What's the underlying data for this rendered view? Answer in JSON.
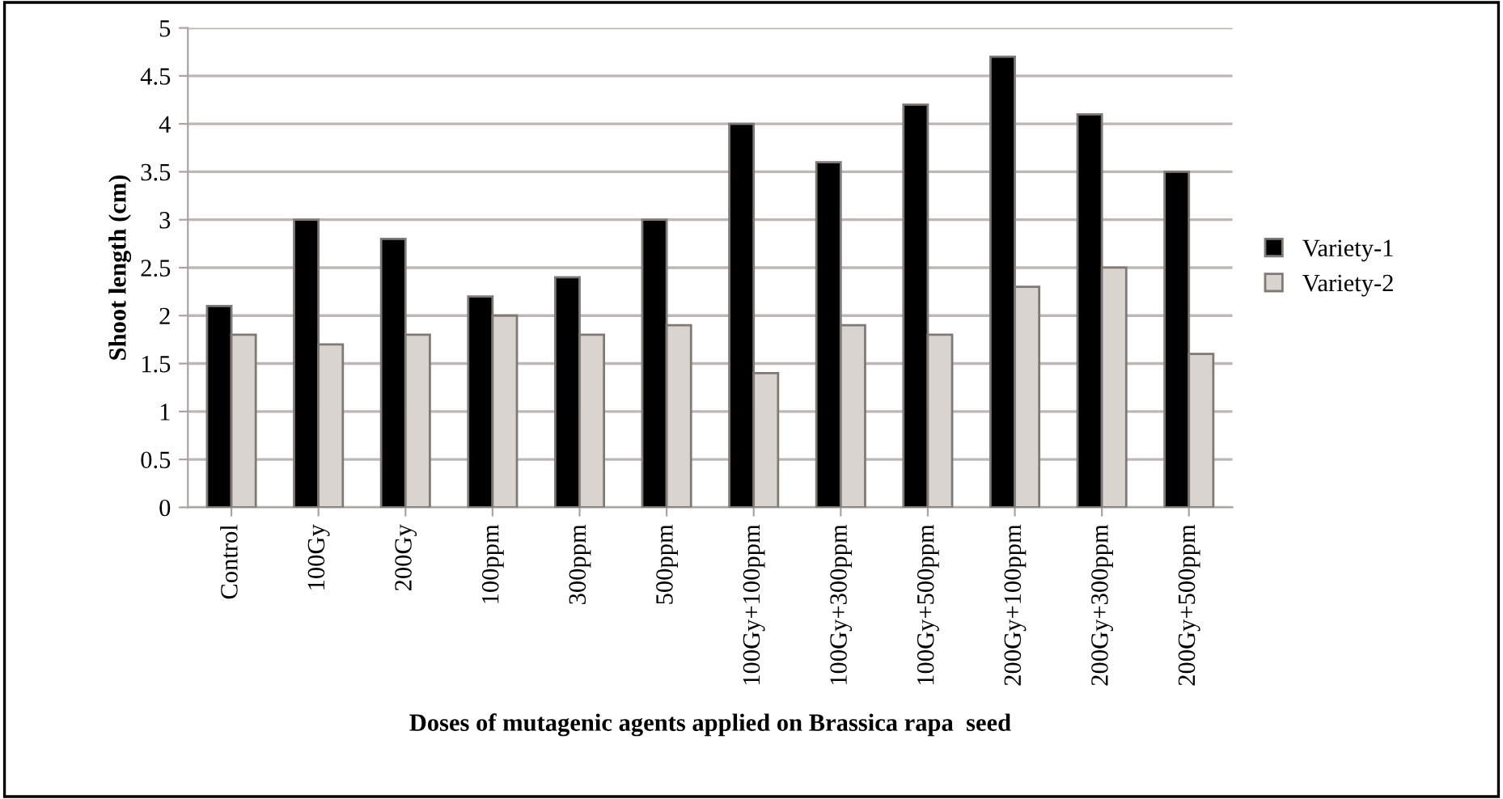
{
  "chart_data": {
    "type": "bar",
    "xlabel": "Doses of mutagenic agents applied on Brassica rapa  seed",
    "ylabel": "Shoot length (cm)",
    "categories": [
      "Control",
      "100Gy",
      "200Gy",
      "100ppm",
      "300ppm",
      "500ppm",
      "100Gy+100ppm",
      "100Gy+300ppm",
      "100Gy+500ppm",
      "200Gy+100ppm",
      "200Gy+300ppm",
      "200Gy+500ppm"
    ],
    "series": [
      {
        "name": "Variety-1",
        "color": "#000000",
        "values": [
          2.1,
          3.0,
          2.8,
          2.2,
          2.4,
          3.0,
          4.0,
          3.6,
          4.2,
          4.7,
          4.1,
          3.5
        ]
      },
      {
        "name": "Variety-2",
        "color": "#d9d4cf",
        "values": [
          1.8,
          1.7,
          1.8,
          2.0,
          1.8,
          1.9,
          1.4,
          1.9,
          1.8,
          2.3,
          2.5,
          1.6
        ]
      }
    ],
    "ylim": [
      0,
      5
    ],
    "yticks": [
      0,
      0.5,
      1,
      1.5,
      2,
      2.5,
      3,
      3.5,
      4,
      4.5,
      5
    ],
    "grid": "y",
    "legend": "right"
  }
}
